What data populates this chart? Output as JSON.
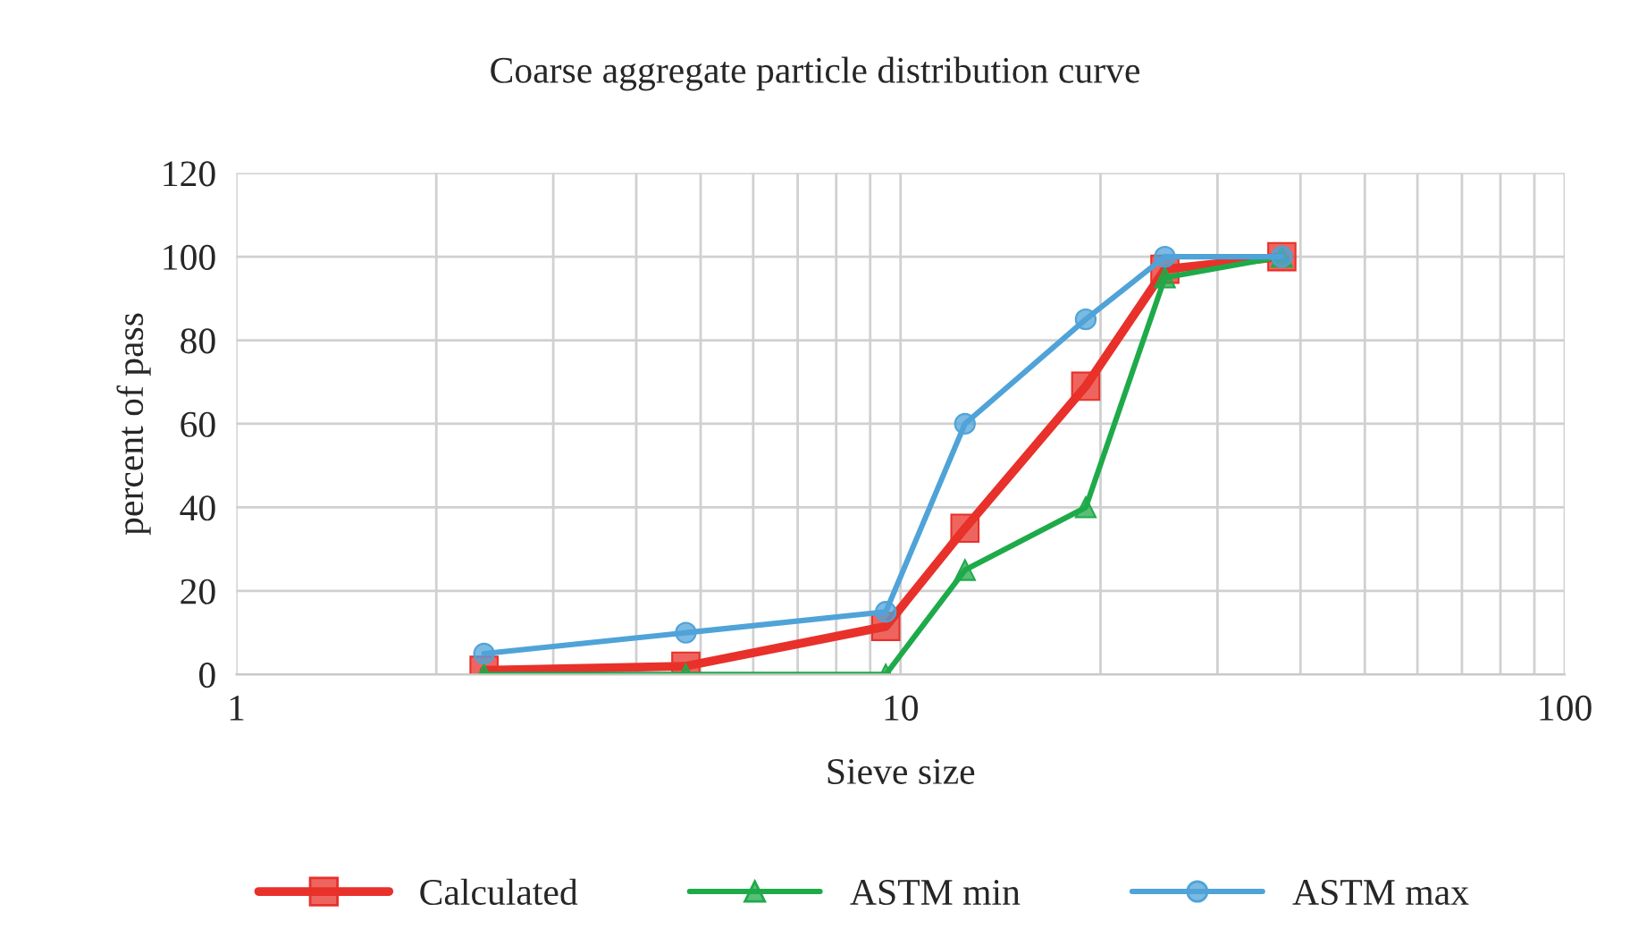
{
  "chart_data": {
    "type": "line",
    "title": "Coarse aggregate particle distribution curve",
    "xlabel": "Sieve size",
    "ylabel": "percent of pass",
    "x": [
      2.36,
      4.75,
      9.5,
      12.5,
      19,
      25,
      37.5
    ],
    "series": [
      {
        "name": "Calculated",
        "color": "#e8312a",
        "marker": "square",
        "values": [
          1,
          2,
          11.5,
          35,
          69,
          97,
          100
        ]
      },
      {
        "name": "ASTM min",
        "color": "#1faa4a",
        "marker": "triangle",
        "values": [
          0,
          0,
          0,
          25,
          40,
          95,
          100
        ]
      },
      {
        "name": "ASTM max",
        "color": "#4fa3d8",
        "marker": "circle",
        "values": [
          5,
          10,
          15,
          60,
          85,
          100,
          100
        ]
      }
    ],
    "log": "x",
    "xlim": [
      1,
      100
    ],
    "xticks": [
      1,
      {
        "value": 2,
        "label": null
      },
      {
        "value": 3,
        "label": null
      },
      {
        "value": 4,
        "label": null
      },
      {
        "value": 5,
        "label": null
      },
      {
        "value": 6,
        "label": null
      },
      {
        "value": 7,
        "label": null
      },
      {
        "value": 8,
        "label": null
      },
      {
        "value": 9,
        "label": null
      },
      10,
      {
        "value": 20,
        "label": null
      },
      {
        "value": 30,
        "label": null
      },
      {
        "value": 40,
        "label": null
      },
      {
        "value": 50,
        "label": null
      },
      {
        "value": 60,
        "label": null
      },
      {
        "value": 70,
        "label": null
      },
      {
        "value": 80,
        "label": null
      },
      {
        "value": 90,
        "label": null
      },
      100
    ],
    "ylim": [
      0,
      120
    ],
    "yticks": [
      0,
      20,
      40,
      60,
      80,
      100,
      120
    ],
    "grid": true,
    "legend": "bottom",
    "line_style": "solid"
  }
}
